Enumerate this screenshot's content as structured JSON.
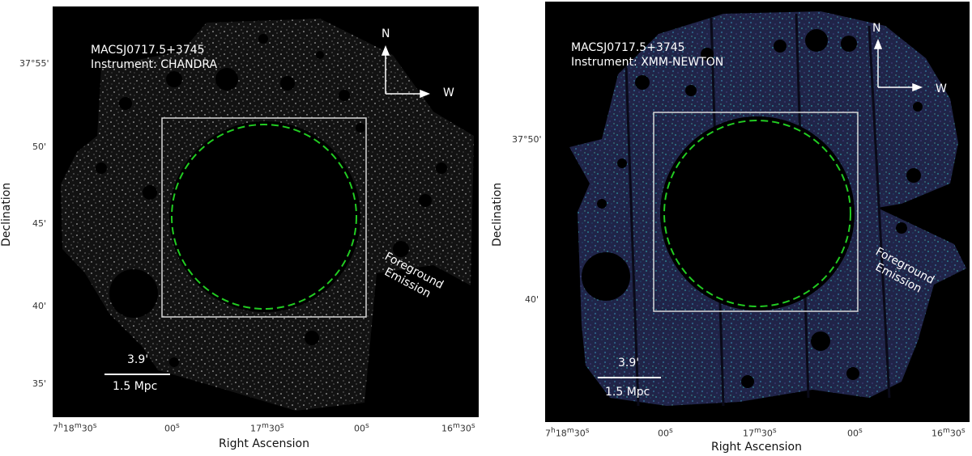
{
  "panels": [
    {
      "object": "MACSJ0717.5+3745",
      "instrument": "Instrument: CHANDRA",
      "north": "N",
      "west": "W",
      "foreground": [
        "Foreground",
        "Emission"
      ],
      "scale_arcmin": "3.9'",
      "scale_mpc": "1.5 Mpc",
      "yticks": [
        "37°55'",
        "50'",
        "45'",
        "40'",
        "35'"
      ],
      "xticks": [
        {
          "main": "7",
          "sups": [
            "h",
            "m",
            "s"
          ],
          "parts": [
            "18",
            "30"
          ]
        },
        {
          "main": "00",
          "sups": [
            "s"
          ]
        },
        {
          "main": "17",
          "sups": [
            "m",
            "s"
          ],
          "parts": [
            "30"
          ]
        },
        {
          "main": "00",
          "sups": [
            "s"
          ]
        },
        {
          "main": "16",
          "sups": [
            "m",
            "s"
          ],
          "parts": [
            "30"
          ]
        }
      ],
      "xlabel": "Right Ascension",
      "ylabel": "Declination",
      "colormap": [
        "#000000",
        "#ffffff"
      ]
    },
    {
      "object": "MACSJ0717.5+3745",
      "instrument": "Instrument: XMM-NEWTON",
      "north": "N",
      "west": "W",
      "foreground": [
        "Foreground",
        "Emission"
      ],
      "scale_arcmin": "3.9'",
      "scale_mpc": "1.5 Mpc",
      "yticks": [
        "37°50'",
        "40'"
      ],
      "xticks": [
        {
          "main": "7",
          "sups": [
            "h",
            "m",
            "s"
          ],
          "parts": [
            "18",
            "30"
          ]
        },
        {
          "main": "00",
          "sups": [
            "s"
          ]
        },
        {
          "main": "17",
          "sups": [
            "m",
            "s"
          ],
          "parts": [
            "30"
          ]
        },
        {
          "main": "00",
          "sups": [
            "s"
          ]
        },
        {
          "main": "16",
          "sups": [
            "m",
            "s"
          ],
          "parts": [
            "30"
          ]
        }
      ],
      "xlabel": "Right Ascension",
      "ylabel": "Declination",
      "colormap": [
        "#1b1b3a",
        "#2e6f8e",
        "#6fd0a0"
      ]
    }
  ],
  "circle_color": "#22cc22",
  "box_color": "#d8d8d8"
}
